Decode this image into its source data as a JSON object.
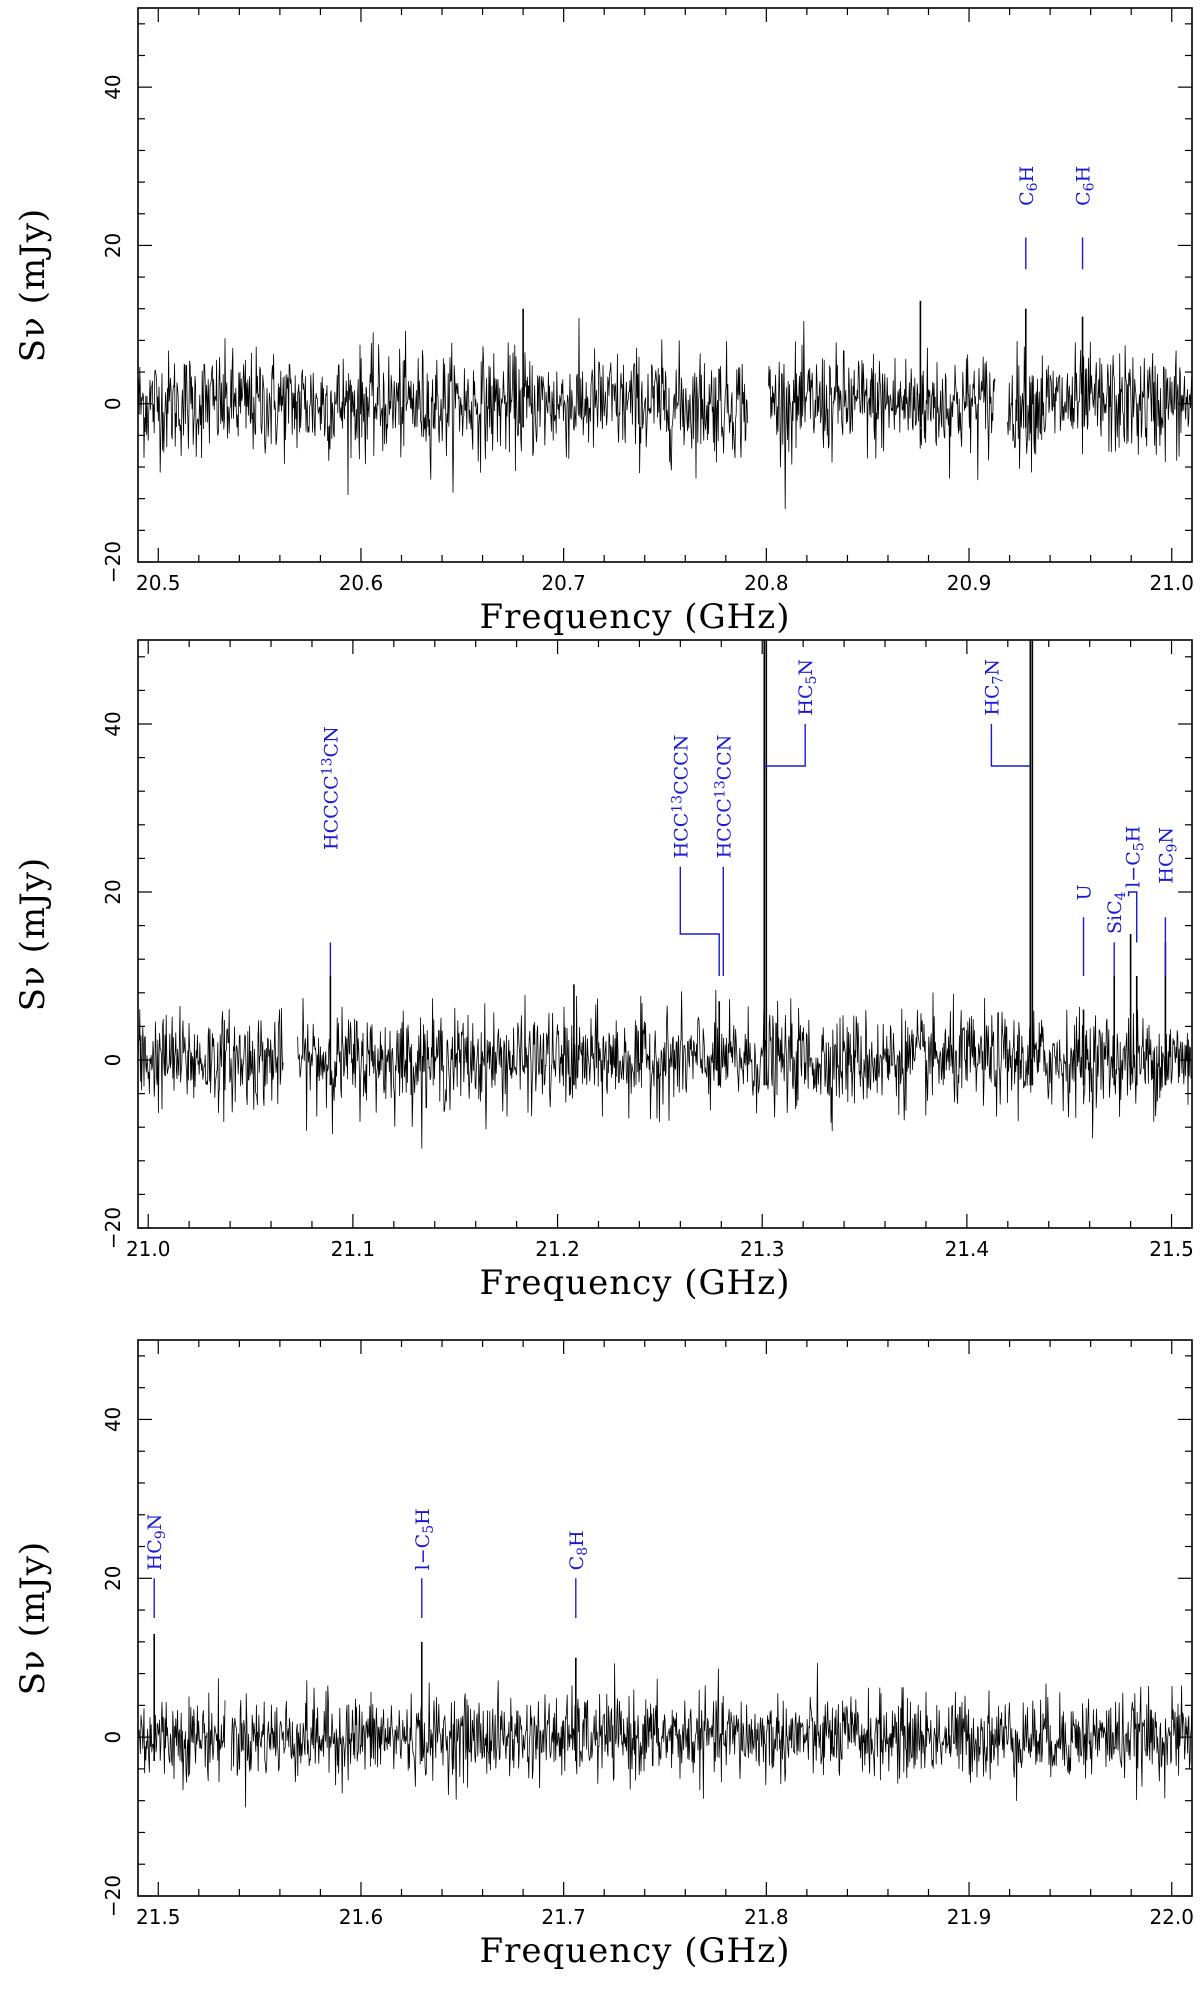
{
  "chart_data": [
    {
      "type": "line",
      "xlabel": "Frequency (GHz)",
      "ylabel": "Sν (mJy)",
      "xlim": [
        20.49,
        21.01
      ],
      "ylim": [
        -20,
        50
      ],
      "xticks": [
        20.5,
        20.6,
        20.7,
        20.8,
        20.9,
        21.0
      ],
      "yticks": [
        -20,
        0,
        20,
        40
      ],
      "xticklabels": [
        "20.5",
        "20.6",
        "20.7",
        "20.8",
        "20.9",
        "21.0"
      ],
      "yticklabels": [
        "−20",
        "0",
        "20",
        "40"
      ],
      "noise_rms": 3.3,
      "segments": [
        [
          20.49,
          20.791
        ],
        [
          20.801,
          20.913
        ],
        [
          20.919,
          21.01
        ]
      ],
      "peaks": [
        {
          "x": 20.928,
          "y": 12
        },
        {
          "x": 20.956,
          "y": 11
        },
        {
          "x": 20.68,
          "y": 12
        },
        {
          "x": 20.876,
          "y": 13
        }
      ],
      "annotations": [
        {
          "label": "C6H",
          "parts": [
            [
              "C",
              ""
            ],
            [
              "6",
              "sub"
            ],
            [
              "H",
              ""
            ]
          ],
          "x": 20.928,
          "label_y": 25,
          "tick": [
            17,
            21
          ]
        },
        {
          "label": "C6H",
          "parts": [
            [
              "C",
              ""
            ],
            [
              "6",
              "sub"
            ],
            [
              "H",
              ""
            ]
          ],
          "x": 20.956,
          "label_y": 25,
          "tick": [
            17,
            21
          ]
        }
      ]
    },
    {
      "type": "line",
      "xlabel": "Frequency (GHz)",
      "ylabel": "Sν (mJy)",
      "xlim": [
        20.995,
        21.51
      ],
      "ylim": [
        -20,
        50
      ],
      "xticks": [
        21.0,
        21.1,
        21.2,
        21.3,
        21.4,
        21.5
      ],
      "yticks": [
        -20,
        0,
        20,
        40
      ],
      "xticklabels": [
        "21.0",
        "21.1",
        "21.2",
        "21.3",
        "21.4",
        "21.5"
      ],
      "yticklabels": [
        "−20",
        "0",
        "20",
        "40"
      ],
      "noise_rms": 2.8,
      "segments": [
        [
          20.995,
          21.066
        ],
        [
          21.073,
          21.51
        ]
      ],
      "peaks": [
        {
          "x": 21.089,
          "y": 10
        },
        {
          "x": 21.208,
          "y": 9
        },
        {
          "x": 21.279,
          "y": 7
        },
        {
          "x": 21.301,
          "y": 60
        },
        {
          "x": 21.302,
          "y": 55
        },
        {
          "x": 21.431,
          "y": 60
        },
        {
          "x": 21.432,
          "y": 55
        },
        {
          "x": 21.457,
          "y": 6
        },
        {
          "x": 21.472,
          "y": 10
        },
        {
          "x": 21.48,
          "y": 15
        },
        {
          "x": 21.483,
          "y": 10
        },
        {
          "x": 21.497,
          "y": 14
        }
      ],
      "annotations": [
        {
          "label": "HCCCC13CN",
          "parts": [
            [
              "HCCCC",
              ""
            ],
            [
              "13",
              "sup"
            ],
            [
              "CN",
              ""
            ]
          ],
          "x": 21.089,
          "label_y": 25,
          "tick": [
            10,
            14
          ]
        },
        {
          "label": "HCC13CCCN",
          "parts": [
            [
              "HCC",
              ""
            ],
            [
              "13",
              "sup"
            ],
            [
              "CCCN",
              ""
            ]
          ],
          "x": 21.26,
          "label_y": 24,
          "bracket": {
            "x_from": 21.26,
            "x_to": 21.279,
            "y": 15,
            "drop_to": 10
          }
        },
        {
          "label": "HCCC13CCN",
          "parts": [
            [
              "HCCC",
              ""
            ],
            [
              "13",
              "sup"
            ],
            [
              "CCN",
              ""
            ]
          ],
          "x": 21.281,
          "label_y": 24,
          "bracket": {
            "x_from": 21.281,
            "x_to": 21.281,
            "y": 15,
            "drop_to": 10
          }
        },
        {
          "label": "HC5N",
          "parts": [
            [
              "HC",
              ""
            ],
            [
              "5",
              "sub"
            ],
            [
              "N",
              ""
            ]
          ],
          "x": 21.321,
          "label_y": 41,
          "bracket": {
            "x_from": 21.321,
            "x_to": 21.301,
            "y": 35,
            "drop_to": 35
          }
        },
        {
          "label": "HC7N",
          "parts": [
            [
              "HC",
              ""
            ],
            [
              "7",
              "sub"
            ],
            [
              "N",
              ""
            ]
          ],
          "x": 21.412,
          "label_y": 41,
          "bracket": {
            "x_from": 21.412,
            "x_to": 21.431,
            "y": 35,
            "drop_to": 35
          }
        },
        {
          "label": "U",
          "parts": [
            [
              "U",
              ""
            ]
          ],
          "x": 21.457,
          "label_y": 19,
          "tick": [
            10,
            17
          ]
        },
        {
          "label": "SiC4",
          "parts": [
            [
              "SiC",
              ""
            ],
            [
              "4",
              "sub"
            ]
          ],
          "x": 21.472,
          "label_y": 15,
          "tick": [
            10,
            14
          ]
        },
        {
          "label": "l−C5H",
          "parts": [
            [
              "l−C",
              ""
            ],
            [
              "5",
              "sub"
            ],
            [
              "H",
              ""
            ]
          ],
          "x": 21.481,
          "label_y": 20.5,
          "bracket": {
            "x_from": 21.479,
            "x_to": 21.483,
            "y": 20,
            "drop_to": 14
          }
        },
        {
          "label": "HC9N",
          "parts": [
            [
              "HC",
              ""
            ],
            [
              "9",
              "sub"
            ],
            [
              "N",
              ""
            ]
          ],
          "x": 21.497,
          "label_y": 21,
          "tick": [
            10,
            17
          ]
        }
      ]
    },
    {
      "type": "line",
      "xlabel": "Frequency (GHz)",
      "ylabel": "Sν (mJy)",
      "xlim": [
        21.49,
        22.01
      ],
      "ylim": [
        -20,
        50
      ],
      "xticks": [
        21.5,
        21.6,
        21.7,
        21.8,
        21.9,
        22.0
      ],
      "yticks": [
        -20,
        0,
        20,
        40
      ],
      "xticklabels": [
        "21.5",
        "21.6",
        "21.7",
        "21.8",
        "21.9",
        "22.0"
      ],
      "yticklabels": [
        "−20",
        "0",
        "20",
        "40"
      ],
      "noise_rms": 2.6,
      "segments": [
        [
          21.49,
          21.533
        ],
        [
          21.536,
          22.01
        ]
      ],
      "peaks": [
        {
          "x": 21.498,
          "y": 13
        },
        {
          "x": 21.63,
          "y": 12
        },
        {
          "x": 21.706,
          "y": 10
        }
      ],
      "annotations": [
        {
          "label": "HC9N",
          "parts": [
            [
              "HC",
              ""
            ],
            [
              "9",
              "sub"
            ],
            [
              "N",
              ""
            ]
          ],
          "x": 21.498,
          "label_y": 21,
          "tick": [
            15,
            20
          ]
        },
        {
          "label": "l−C5H",
          "parts": [
            [
              "l−C",
              ""
            ],
            [
              "5",
              "sub"
            ],
            [
              "H",
              ""
            ]
          ],
          "x": 21.63,
          "label_y": 21,
          "tick": [
            15,
            20
          ]
        },
        {
          "label": "C8H",
          "parts": [
            [
              "C",
              ""
            ],
            [
              "8",
              "sub"
            ],
            [
              "H",
              ""
            ]
          ],
          "x": 21.706,
          "label_y": 21,
          "tick": [
            15,
            20
          ]
        }
      ]
    }
  ]
}
